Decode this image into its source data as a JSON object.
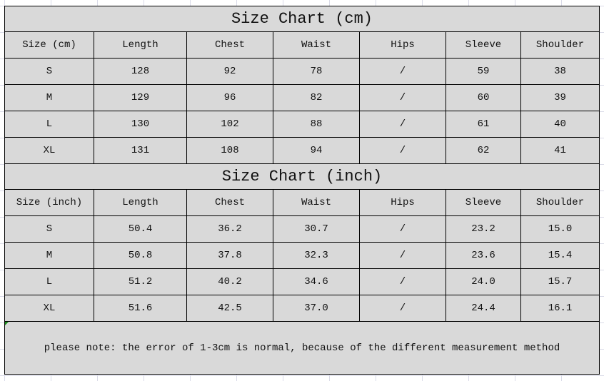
{
  "cm": {
    "title": "Size Chart (cm)",
    "headers": [
      "Size (cm)",
      "Length",
      "Chest",
      "Waist",
      "Hips",
      "Sleeve",
      "Shoulder"
    ],
    "rows": [
      [
        "S",
        "128",
        "92",
        "78",
        "/",
        "59",
        "38"
      ],
      [
        "M",
        "129",
        "96",
        "82",
        "/",
        "60",
        "39"
      ],
      [
        "L",
        "130",
        "102",
        "88",
        "/",
        "61",
        "40"
      ],
      [
        "XL",
        "131",
        "108",
        "94",
        "/",
        "62",
        "41"
      ]
    ]
  },
  "inch": {
    "title": "Size Chart (inch)",
    "headers": [
      "Size (inch)",
      "Length",
      "Chest",
      "Waist",
      "Hips",
      "Sleeve",
      "Shoulder"
    ],
    "rows": [
      [
        "S",
        "50.4",
        "36.2",
        "30.7",
        "/",
        "23.2",
        "15.0"
      ],
      [
        "M",
        "50.8",
        "37.8",
        "32.3",
        "/",
        "23.6",
        "15.4"
      ],
      [
        "L",
        "51.2",
        "40.2",
        "34.6",
        "/",
        "24.0",
        "15.7"
      ],
      [
        "XL",
        "51.6",
        "42.5",
        "37.0",
        "/",
        "24.4",
        "16.1"
      ]
    ]
  },
  "note": "please note: the error of 1-3cm is normal, because of the different measurement method",
  "colors": {
    "cell_background": "#d9d9d9",
    "border": "#000000",
    "gridlines": "#dadbe8"
  }
}
